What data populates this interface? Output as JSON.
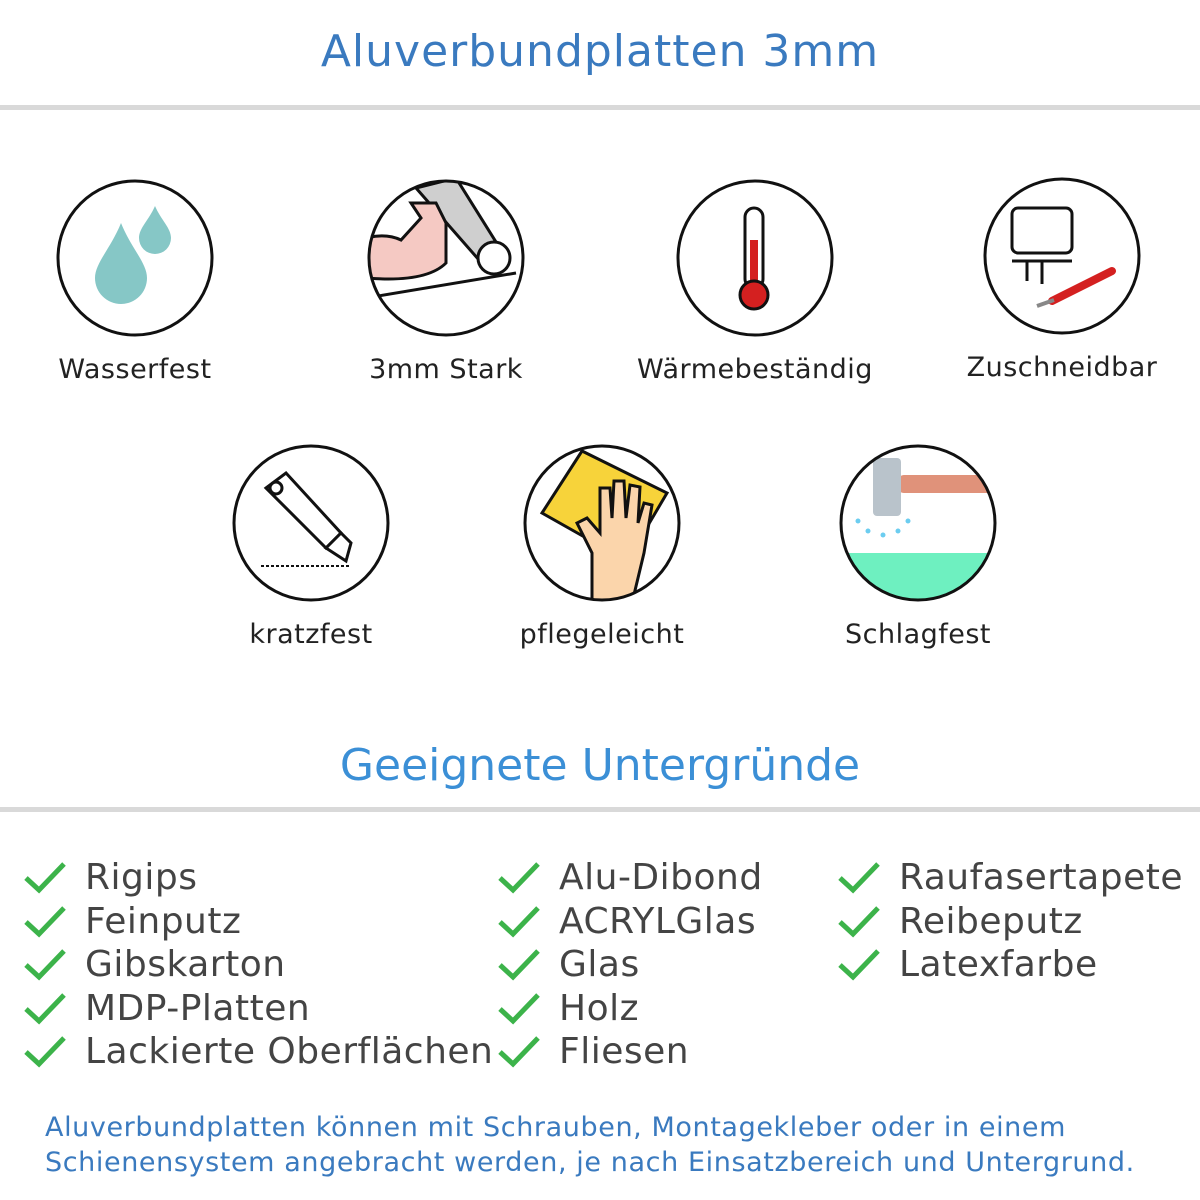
{
  "title": "Aluverbundplatten 3mm",
  "features": [
    {
      "label": "Wasserfest",
      "icon": "water-drops-icon"
    },
    {
      "label": "3mm Stark",
      "icon": "strong-arm-icon"
    },
    {
      "label": "Wärmebeständig",
      "icon": "thermometer-icon"
    },
    {
      "label": "Zuschneidbar",
      "icon": "jigsaw-icon"
    },
    {
      "label": "kratzfest",
      "icon": "cutter-knife-icon"
    },
    {
      "label": "pflegeleicht",
      "icon": "cleaning-hand-icon"
    },
    {
      "label": "Schlagfest",
      "icon": "hammer-icon"
    }
  ],
  "subtitle": "Geeignete Untergründe",
  "surfaces": {
    "col1": [
      "Rigips",
      "Feinputz",
      "Gibskarton",
      "MDP-Platten",
      "Lackierte Oberflächen"
    ],
    "col2": [
      "Alu-Dibond",
      "ACRYLGlas",
      "Glas",
      "Holz",
      "Fliesen"
    ],
    "col3": [
      "Raufasertapete",
      "Reibeputz",
      "Latexfarbe"
    ]
  },
  "footer": {
    "line1": "Aluverbundplatten können mit Schrauben, Montagekleber oder in einem",
    "line2": "Schienensystem angebracht werden, je nach Einsatzbereich und Untergrund."
  },
  "colors": {
    "title": "#3a7abf",
    "subtitle": "#3b8fd6",
    "check": "#3cb34a",
    "text": "#444444"
  }
}
